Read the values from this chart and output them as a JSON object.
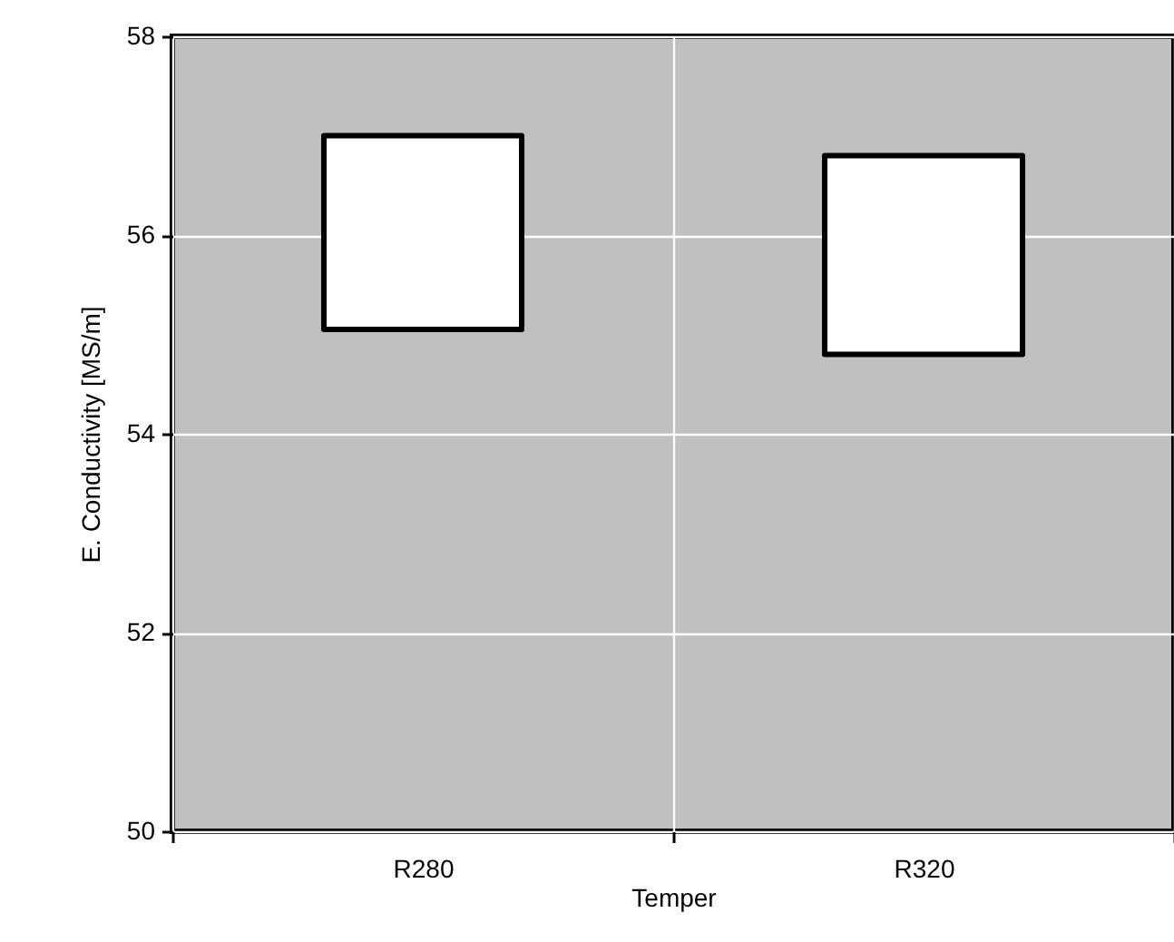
{
  "chart_data": {
    "type": "box",
    "xlabel": "Temper",
    "ylabel": "E. Conductivity [MS/m]",
    "categories": [
      "R280",
      "R320"
    ],
    "boxes": [
      {
        "low": 55.05,
        "q1": 55.05,
        "median": 55.05,
        "q3": 57.0,
        "high": 57.0
      },
      {
        "low": 54.8,
        "q1": 54.8,
        "median": 54.8,
        "q3": 56.8,
        "high": 56.8
      }
    ],
    "ylim": [
      50,
      58
    ],
    "yticks": [
      50,
      52,
      54,
      56,
      58
    ],
    "grid": true
  }
}
